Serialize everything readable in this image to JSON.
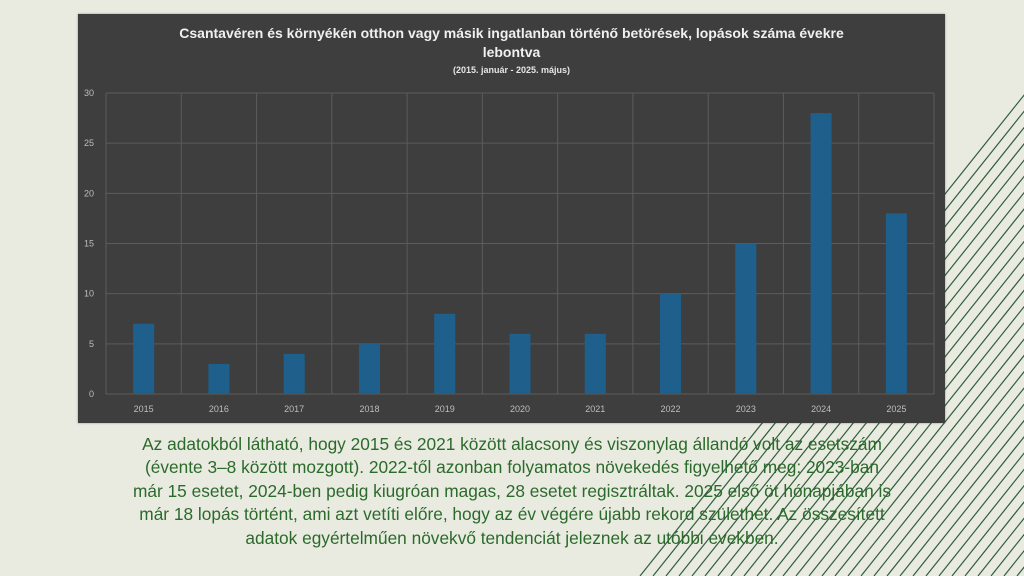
{
  "chart_data": {
    "type": "bar",
    "title_lines": [
      "Csantavéren és környékén otthon vagy másik ingatlanban történő betörések, lopások száma évekre",
      "lebontva"
    ],
    "subtitle": "(2015. január - 2025. május)",
    "categories": [
      "2015",
      "2016",
      "2017",
      "2018",
      "2019",
      "2020",
      "2021",
      "2022",
      "2023",
      "2024",
      "2025"
    ],
    "values": [
      7,
      3,
      4,
      5,
      8,
      6,
      6,
      10,
      15,
      28,
      18
    ],
    "ylim": [
      0,
      30
    ],
    "yticks": [
      0,
      5,
      10,
      15,
      20,
      25,
      30
    ],
    "xlabel": "",
    "ylabel": "",
    "grid": true,
    "legend": "none",
    "colors": {
      "bar": "#1f5f8b",
      "background": "#3e3e3e",
      "grid": "#5c5c5c",
      "text": "#bdbdbd"
    }
  },
  "caption_lines": [
    "Az adatokból látható, hogy 2015 és 2021 között alacsony és viszonylag állandó volt az esetszám",
    "(évente 3–8 között mozgott). 2022-től azonban folyamatos növekedés figyelhető meg: 2023-ban",
    "már 15 esetet, 2024-ben pedig kiugróan magas, 28 esetet regisztráltak. 2025 első öt hónapjában is",
    "már 18 lopás történt, ami azt vetíti előre, hogy az év végére újabb rekord születhet. Az összesített",
    "adatok egyértelműen növekvő tendenciát jeleznek az utóbbi években."
  ],
  "decoration": {
    "stripe_color": "#2f5e3a"
  }
}
